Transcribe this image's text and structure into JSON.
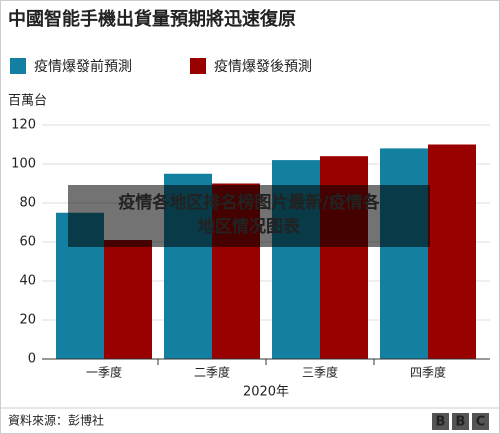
{
  "chart_data": {
    "type": "bar",
    "title": "中國智能手機出貨量預期將迅速復原",
    "y_label": "百萬台",
    "x_label": "2020年",
    "categories": [
      "一季度",
      "二季度",
      "三季度",
      "四季度"
    ],
    "series": [
      {
        "name": "疫情爆發前預測",
        "color": "#1380a1",
        "values": [
          75,
          95,
          102,
          108
        ]
      },
      {
        "name": "疫情爆發後預測",
        "color": "#990000",
        "values": [
          61,
          90,
          104,
          110
        ]
      }
    ],
    "ylim": [
      0,
      120
    ],
    "yticks": [
      0,
      20,
      40,
      60,
      80,
      100,
      120
    ],
    "grid": true,
    "source": "資料來源：彭博社",
    "logo": [
      "B",
      "B",
      "C"
    ],
    "overlay": [
      "疫情各地区排名榜图片最新/疫情各",
      "地区情况图表"
    ]
  }
}
